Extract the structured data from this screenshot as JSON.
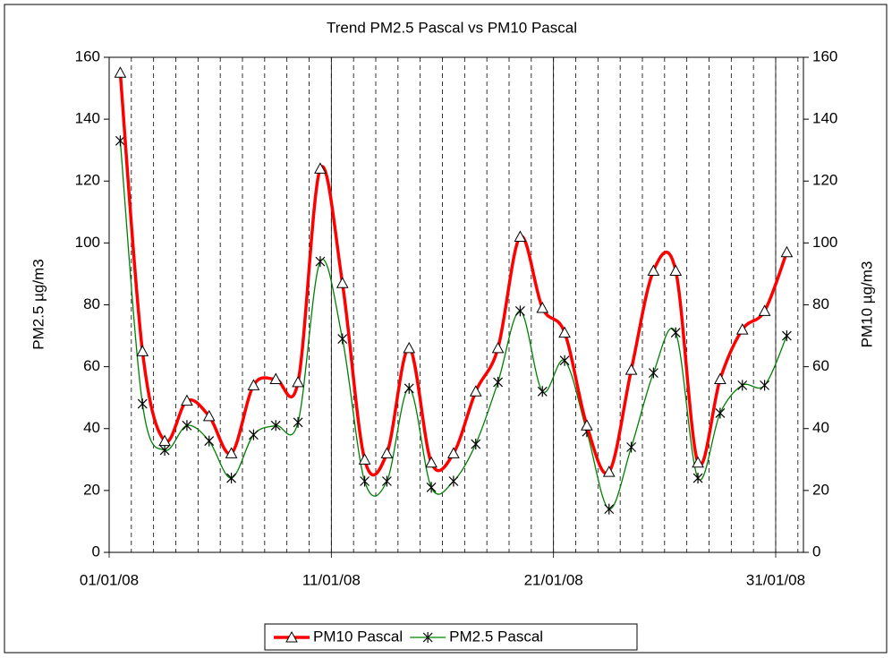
{
  "chart_data": {
    "type": "line",
    "title": "Trend PM2.5 Pascal vs PM10 Pascal",
    "y_label": "PM2.5 µg/m3",
    "y2_label": "PM10 µg/m3",
    "x": [
      "01/01/08",
      "02/01/08",
      "03/01/08",
      "04/01/08",
      "05/01/08",
      "06/01/08",
      "07/01/08",
      "08/01/08",
      "09/01/08",
      "10/01/08",
      "11/01/08",
      "12/01/08",
      "13/01/08",
      "14/01/08",
      "15/01/08",
      "16/01/08",
      "17/01/08",
      "18/01/08",
      "19/01/08",
      "20/01/08",
      "21/01/08",
      "22/01/08",
      "23/01/08",
      "24/01/08",
      "25/01/08",
      "26/01/08",
      "27/01/08",
      "28/01/08",
      "29/01/08",
      "30/01/08",
      "31/01/08"
    ],
    "xlim": [
      "01/01/08",
      "31/01/08"
    ],
    "xticks": [
      "01/01/08",
      "11/01/08",
      "21/01/08",
      "31/01/08"
    ],
    "ylim": [
      0,
      160
    ],
    "yticks": [
      0,
      20,
      40,
      60,
      80,
      100,
      120,
      140,
      160
    ],
    "y2lim": [
      0,
      160
    ],
    "y2ticks": [
      0,
      20,
      40,
      60,
      80,
      100,
      120,
      140,
      160
    ],
    "legend": "bottom",
    "series": [
      {
        "name": "PM10 Pascal",
        "color": "#ff0000",
        "axis": "y2",
        "values": [
          155,
          65,
          36,
          49,
          44,
          32,
          54,
          56,
          55,
          124,
          87,
          30,
          32,
          66,
          29,
          32,
          52,
          66,
          102,
          79,
          71,
          41,
          26,
          59,
          91,
          91,
          29,
          56,
          72,
          78,
          97
        ]
      },
      {
        "name": "PM2.5 Pascal",
        "color": "#008000",
        "values": [
          133,
          48,
          33,
          41,
          36,
          24,
          38,
          41,
          42,
          94,
          69,
          23,
          23,
          53,
          21,
          23,
          35,
          55,
          78,
          52,
          62,
          39,
          14,
          34,
          58,
          71,
          24,
          45,
          54,
          54,
          70
        ]
      }
    ]
  }
}
